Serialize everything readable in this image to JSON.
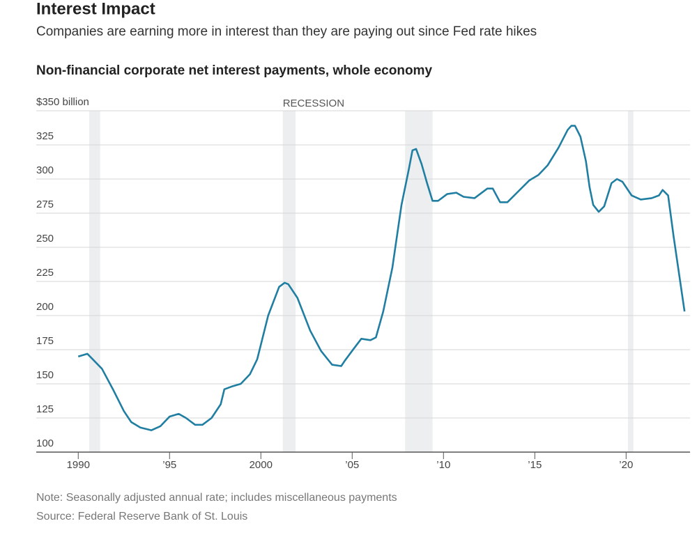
{
  "chart_data": {
    "type": "line",
    "title": "Interest Impact",
    "subtitle": "Companies are earning more in interest than they are paying out since Fed rate hikes",
    "chart_title": "Non-financial corporate net interest payments, whole economy",
    "note": "Note: Seasonally adjusted annual rate; includes miscellaneous payments",
    "source": "Source: Federal Reserve Bank of St. Louis",
    "recession_label": "RECESSION",
    "recessions": [
      [
        1990.6,
        1991.2
      ],
      [
        2001.2,
        2001.9
      ],
      [
        2007.9,
        2009.4
      ],
      [
        2020.1,
        2020.4
      ]
    ],
    "color": "#1f7ea1",
    "grid": true,
    "xlim": [
      1987.7,
      2023.5
    ],
    "ylim": [
      100,
      350
    ],
    "xticks": [
      1990,
      {
        "value": 1995,
        "label": "’95"
      },
      2000,
      {
        "value": 2005,
        "label": "’05"
      },
      {
        "value": 2010,
        "label": "’10"
      },
      {
        "value": 2015,
        "label": "’15"
      },
      {
        "value": 2020,
        "label": "’20"
      }
    ],
    "yticks": [
      100,
      125,
      150,
      175,
      200,
      225,
      250,
      275,
      300,
      325,
      {
        "value": 350,
        "label": "$350 billion"
      }
    ],
    "x": [
      1990,
      1990.5,
      1991.3,
      1991.9,
      1992.5,
      1992.9,
      1993.4,
      1994.0,
      1994.5,
      1995.0,
      1995.5,
      1995.9,
      1996.4,
      1996.8,
      1997.3,
      1997.8,
      1998.0,
      1998.4,
      1998.9,
      1999.4,
      1999.8,
      2000.4,
      2001.0,
      2001.3,
      2001.5,
      2002.0,
      2002.7,
      2003.3,
      2003.9,
      2004.4,
      2004.6,
      2005.1,
      2005.5,
      2006.0,
      2006.3,
      2006.7,
      2007.2,
      2007.7,
      2008.1,
      2008.3,
      2008.5,
      2008.8,
      2009.1,
      2009.4,
      2009.7,
      2010.2,
      2010.7,
      2011.1,
      2011.7,
      2012.4,
      2012.7,
      2013.1,
      2013.5,
      2014.1,
      2014.7,
      2015.2,
      2015.7,
      2016.3,
      2016.8,
      2017.0,
      2017.2,
      2017.5,
      2017.8,
      2018.0,
      2018.2,
      2018.5,
      2018.8,
      2019.2,
      2019.5,
      2019.8,
      2020.3,
      2020.8,
      2021.4,
      2021.8,
      2022.0,
      2022.3,
      2022.6,
      2023.2
    ],
    "values": [
      170,
      172,
      161,
      146,
      130,
      122,
      118,
      116,
      119,
      126,
      128,
      125,
      120,
      120,
      125,
      135,
      146,
      148,
      150,
      157,
      168,
      200,
      221,
      224,
      223,
      213,
      189,
      174,
      164,
      163,
      167,
      176,
      183,
      182,
      184,
      203,
      235,
      281,
      307,
      321,
      322,
      311,
      297,
      284,
      284,
      289,
      290,
      287,
      286,
      293,
      293,
      283,
      283,
      291,
      299,
      303,
      310,
      323,
      336,
      339,
      339,
      331,
      313,
      294,
      281,
      276,
      280,
      297,
      300,
      298,
      288,
      285,
      286,
      288,
      292,
      288,
      258,
      203
    ]
  }
}
